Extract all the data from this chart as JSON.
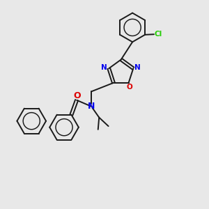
{
  "background_color": "#e8e8e8",
  "bond_color": "#1a1a1a",
  "N_color": "#0000ee",
  "O_color": "#dd0000",
  "Cl_color": "#22cc00",
  "figsize": [
    3.0,
    3.0
  ],
  "dpi": 100,
  "xlim": [
    0,
    10
  ],
  "ylim": [
    0,
    10
  ],
  "lw": 1.4,
  "fs": 7.5,
  "r_benz": 0.7,
  "r_pent": 0.62
}
